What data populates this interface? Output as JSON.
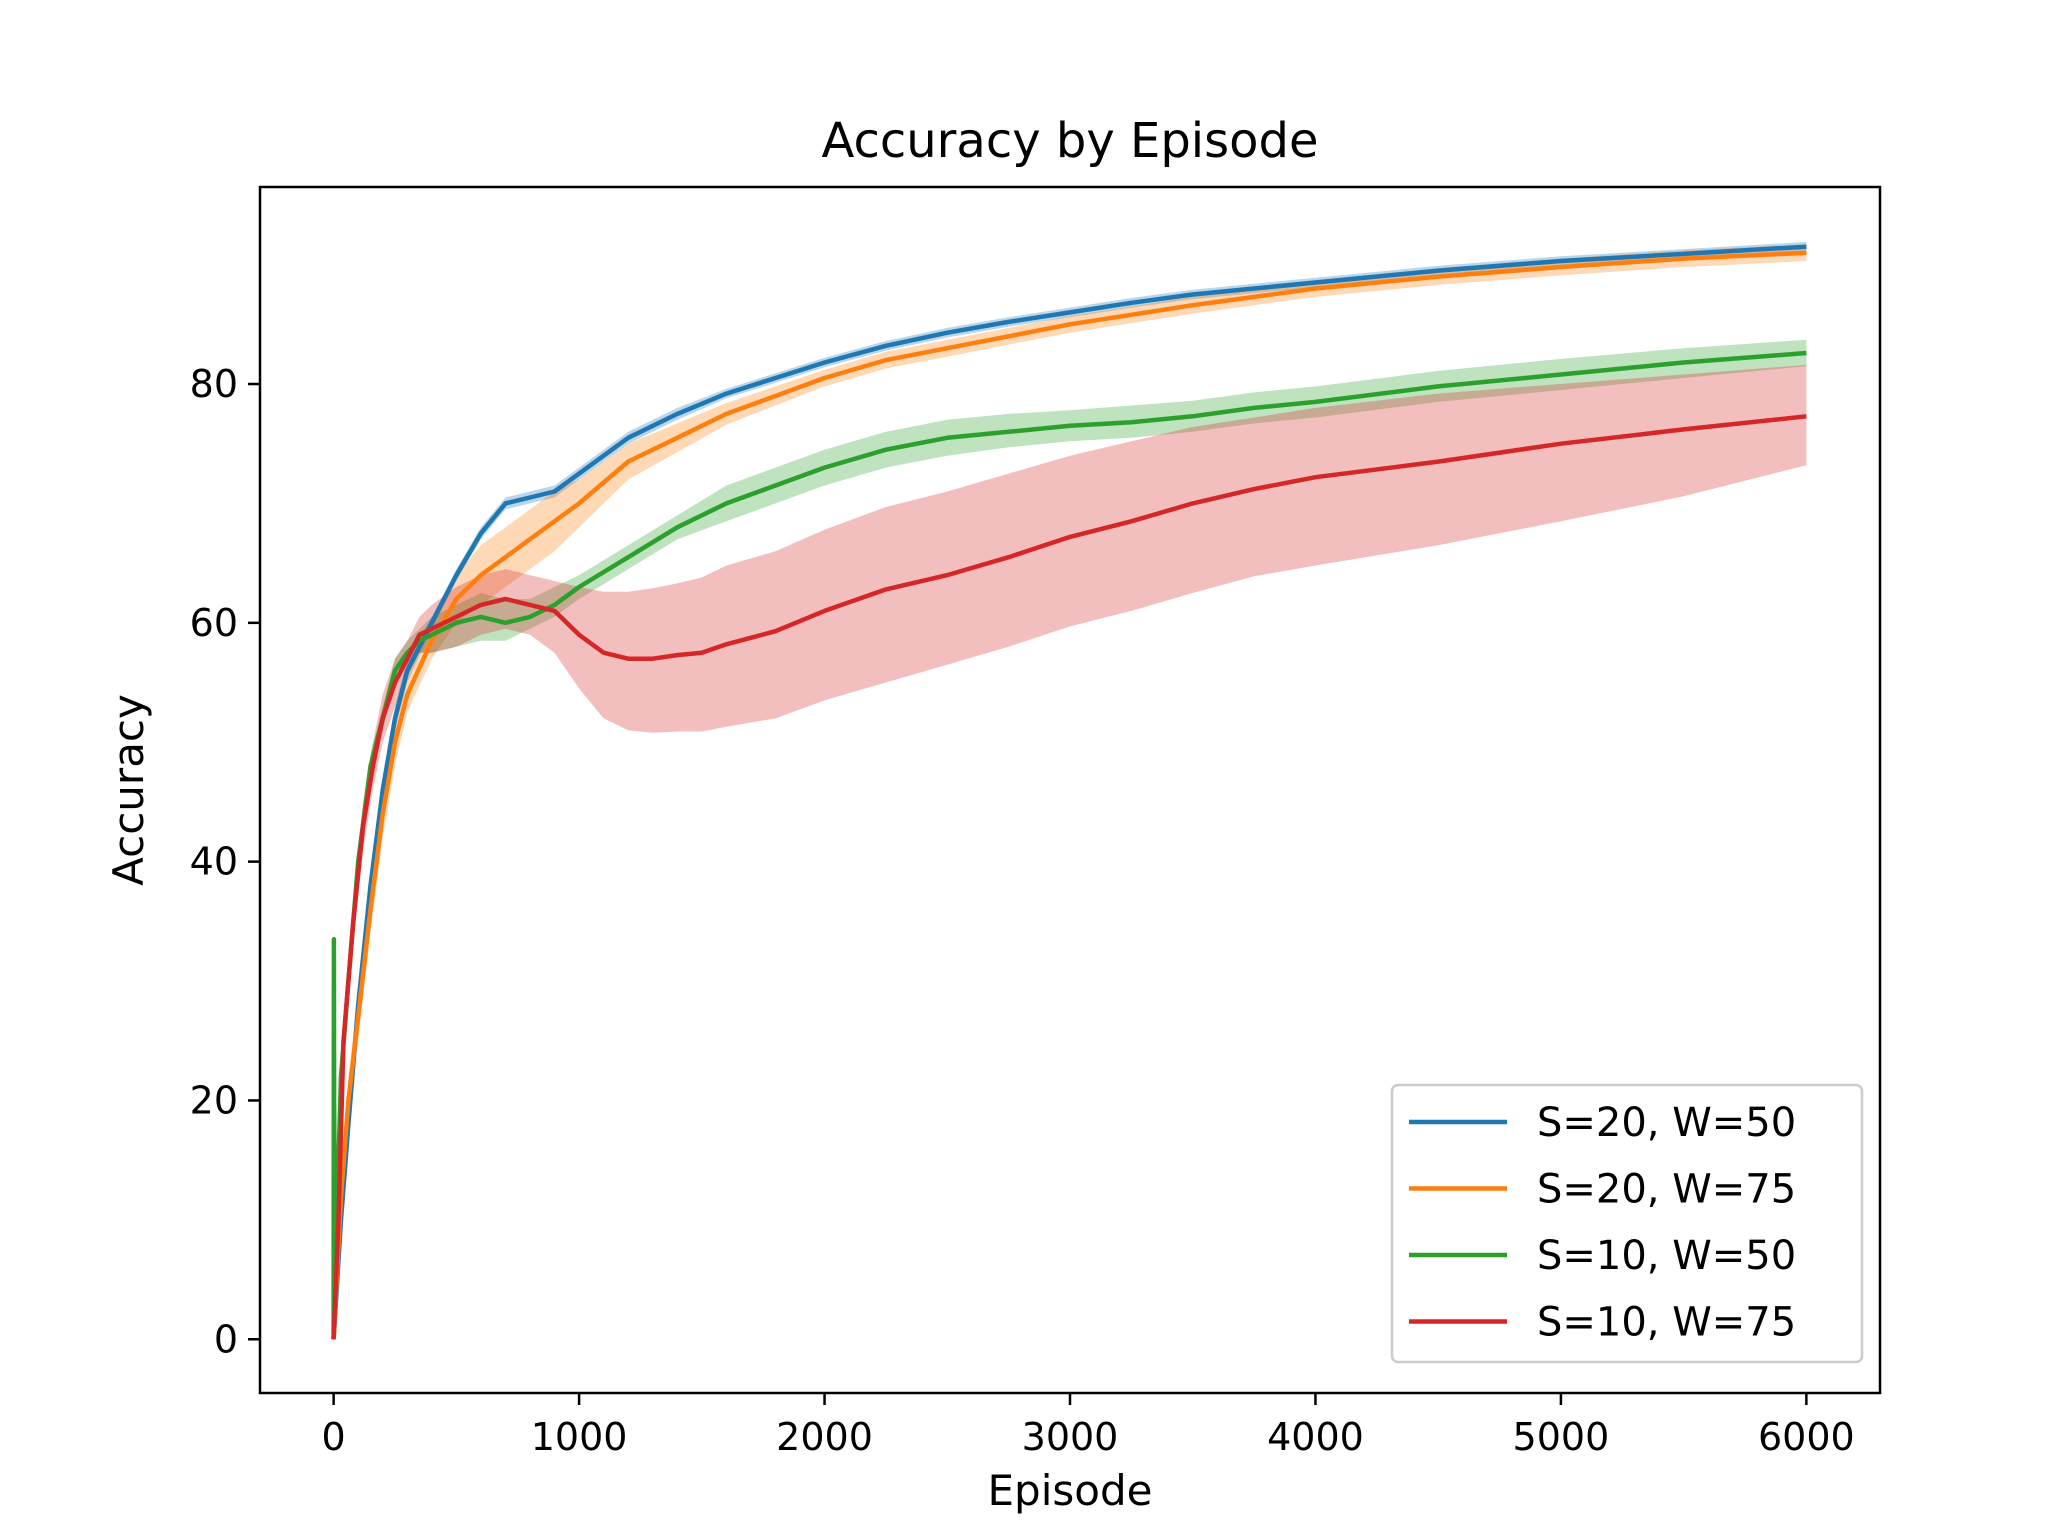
{
  "chart_data": {
    "type": "line",
    "title": "Accuracy by Episode",
    "xlabel": "Episode",
    "ylabel": "Accuracy",
    "xlim": [
      -300,
      6300
    ],
    "ylim": [
      -4.5,
      96.5
    ],
    "xticks": [
      0,
      1000,
      2000,
      3000,
      4000,
      5000,
      6000
    ],
    "yticks": [
      0,
      20,
      40,
      60,
      80
    ],
    "grid": false,
    "legend_position": "lower-right",
    "series": [
      {
        "name": "S=20, W=50",
        "color": "#1f77b4",
        "x": [
          0,
          30,
          60,
          100,
          150,
          200,
          250,
          300,
          400,
          500,
          600,
          700,
          800,
          900,
          1000,
          1200,
          1400,
          1600,
          1800,
          2000,
          2250,
          2500,
          2750,
          3000,
          3250,
          3500,
          3750,
          4000,
          4500,
          5000,
          5500,
          6000
        ],
        "mean": [
          0,
          10,
          18,
          28,
          38,
          46,
          52,
          56,
          60,
          64,
          67.5,
          70,
          70.5,
          71,
          72.5,
          75.5,
          77.5,
          79.2,
          80.5,
          81.8,
          83.2,
          84.3,
          85.2,
          86,
          86.8,
          87.5,
          88,
          88.5,
          89.5,
          90.3,
          90.9,
          91.5
        ],
        "lower": [
          0,
          9,
          17,
          27,
          37,
          45,
          51,
          55,
          59.5,
          63.5,
          67,
          69.5,
          70,
          70.5,
          72,
          75,
          77,
          78.8,
          80.1,
          81.4,
          82.8,
          83.9,
          84.8,
          85.6,
          86.4,
          87.1,
          87.6,
          88.1,
          89.1,
          89.9,
          90.5,
          91.1
        ],
        "upper": [
          0,
          11,
          19,
          29,
          39,
          47,
          53,
          57,
          60.5,
          64.5,
          68,
          70.5,
          71,
          71.5,
          73,
          76,
          78,
          79.6,
          80.9,
          82.2,
          83.6,
          84.7,
          85.6,
          86.4,
          87.2,
          87.9,
          88.4,
          88.9,
          89.9,
          90.7,
          91.3,
          91.9
        ]
      },
      {
        "name": "S=20, W=75",
        "color": "#ff7f0e",
        "x": [
          0,
          30,
          60,
          100,
          150,
          200,
          250,
          300,
          400,
          500,
          600,
          700,
          800,
          900,
          1000,
          1200,
          1400,
          1600,
          1800,
          2000,
          2250,
          2500,
          2750,
          3000,
          3250,
          3500,
          3750,
          4000,
          4500,
          5000,
          5500,
          6000
        ],
        "mean": [
          0,
          12,
          20,
          27,
          36,
          44,
          50,
          54,
          58.5,
          62,
          64,
          65.5,
          67,
          68.5,
          70,
          73.5,
          75.5,
          77.5,
          79,
          80.5,
          82,
          83,
          84,
          85,
          85.8,
          86.6,
          87.3,
          88,
          89,
          89.8,
          90.5,
          91
        ],
        "lower": [
          0,
          10,
          18,
          25,
          34,
          42,
          48,
          52.5,
          57,
          60,
          61.5,
          63,
          64.5,
          66,
          68,
          72,
          74.3,
          76.6,
          78.2,
          79.8,
          81.3,
          82.3,
          83.3,
          84.3,
          85.1,
          85.9,
          86.6,
          87.3,
          88.3,
          89.1,
          89.8,
          90.3
        ],
        "upper": [
          0,
          14,
          22,
          29,
          38,
          46,
          52,
          55.5,
          60,
          64,
          66.5,
          68,
          69.5,
          71,
          72,
          75,
          76.7,
          78.4,
          79.8,
          81.2,
          82.7,
          83.7,
          84.7,
          85.7,
          86.5,
          87.3,
          88,
          88.7,
          89.7,
          90.5,
          91.2,
          91.7
        ]
      },
      {
        "name": "S=10, W=50",
        "color": "#2ca02c",
        "x": [
          0,
          1,
          2,
          5,
          10,
          30,
          60,
          100,
          150,
          200,
          250,
          300,
          350,
          400,
          500,
          600,
          700,
          800,
          900,
          1000,
          1200,
          1400,
          1600,
          1800,
          2000,
          2250,
          2500,
          2750,
          3000,
          3250,
          3500,
          3750,
          4000,
          4500,
          5000,
          5500,
          6000
        ],
        "mean": [
          0,
          33.5,
          20,
          10,
          8,
          22,
          30,
          40,
          48,
          52,
          56,
          57.5,
          58.5,
          59,
          60,
          60.5,
          60,
          60.5,
          61.5,
          63,
          65.5,
          68,
          70,
          71.5,
          73,
          74.5,
          75.5,
          76,
          76.5,
          76.8,
          77.3,
          78,
          78.5,
          79.8,
          80.8,
          81.8,
          82.6
        ],
        "lower": [
          0,
          33.5,
          20,
          10,
          8,
          21,
          29,
          39,
          47,
          51,
          55,
          56.5,
          57.5,
          57.5,
          58,
          58.5,
          58.5,
          59.5,
          60.5,
          62,
          64.5,
          67,
          68.5,
          70,
          71.5,
          73,
          74,
          74.7,
          75.2,
          75.5,
          76,
          76.7,
          77.2,
          78.5,
          79.5,
          80.5,
          81.5
        ],
        "upper": [
          0,
          33.5,
          20,
          10,
          8,
          23,
          31,
          41,
          49,
          53,
          57,
          58.5,
          59.5,
          60.5,
          61.5,
          62.5,
          62,
          62,
          63,
          64,
          66.5,
          69,
          71.5,
          73,
          74.5,
          76,
          77,
          77.5,
          77.8,
          78.2,
          78.6,
          79.3,
          79.8,
          81.1,
          82.1,
          83,
          83.7
        ]
      },
      {
        "name": "S=10, W=75",
        "color": "#d62728",
        "x": [
          0,
          20,
          40,
          80,
          120,
          160,
          200,
          250,
          300,
          350,
          400,
          500,
          600,
          700,
          800,
          900,
          1000,
          1100,
          1200,
          1300,
          1400,
          1500,
          1600,
          1800,
          2000,
          2250,
          2500,
          2750,
          3000,
          3250,
          3500,
          3750,
          4000,
          4500,
          5000,
          5500,
          6000
        ],
        "mean": [
          0,
          10,
          25,
          35,
          43,
          48,
          52,
          55,
          57,
          59,
          59.5,
          60.5,
          61.5,
          62,
          61.5,
          61,
          59,
          57.5,
          57,
          57,
          57.3,
          57.5,
          58.2,
          59.3,
          61,
          62.8,
          64,
          65.5,
          67.2,
          68.5,
          70,
          71.2,
          72.2,
          73.5,
          75,
          76.2,
          77.3
        ],
        "lower": [
          0,
          9,
          23,
          33,
          41,
          46,
          50,
          53,
          55.5,
          57.5,
          57.5,
          58,
          59,
          59.5,
          59,
          57.5,
          54.5,
          52,
          51,
          50.8,
          50.9,
          50.9,
          51.3,
          52,
          53.5,
          55,
          56.5,
          58,
          59.7,
          61,
          62.5,
          63.9,
          64.8,
          66.5,
          68.5,
          70.6,
          73.2
        ],
        "upper": [
          0,
          11,
          27,
          37,
          45,
          50,
          54,
          57,
          58.5,
          60.5,
          61.5,
          63,
          64,
          64.5,
          64,
          63.5,
          63,
          62.6,
          62.6,
          62.9,
          63.3,
          63.8,
          64.8,
          66,
          67.8,
          69.7,
          71,
          72.5,
          74,
          75.2,
          76.4,
          77.2,
          78,
          79.2,
          80,
          80.8,
          81.6
        ]
      }
    ]
  }
}
